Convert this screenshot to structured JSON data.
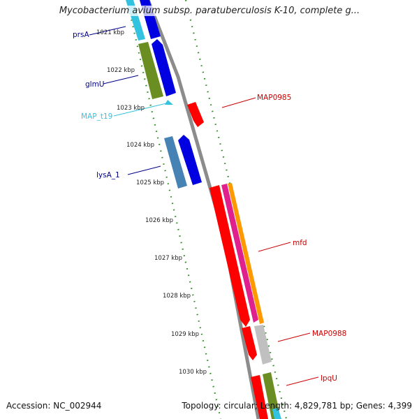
{
  "title": "Mycobacterium avium subsp. paratuberculosis K-10, complete g...",
  "footer": {
    "accession": "Accession: NC_002944",
    "stats": "Topology: circular; Length: 4,829,781 bp; Genes: 4,399"
  },
  "ticks": [
    "1021 kbp",
    "1022 kbp",
    "1023 kbp",
    "1024 kbp",
    "1025 kbp",
    "1026 kbp",
    "1027 kbp",
    "1028 kbp",
    "1029 kbp",
    "1030 kbp"
  ],
  "genes": {
    "left": [
      {
        "label": "prsA",
        "color": "#00008b"
      },
      {
        "label": "glmU",
        "color": "#00008b"
      },
      {
        "label": "MAP_t19",
        "color": "#33c3e0"
      },
      {
        "label": "lysA_1",
        "color": "#00008b"
      }
    ],
    "right": [
      {
        "label": "MAP0985",
        "color": "#cc0000"
      },
      {
        "label": "mfd",
        "color": "#cc0000"
      },
      {
        "label": "MAP0988",
        "color": "#cc0000"
      },
      {
        "label": "lpqU",
        "color": "#cc0000"
      }
    ]
  },
  "colors": {
    "backbone": "#8c8c8c",
    "tick_dots": "#2e8b22",
    "cds_blue": "#0000e0",
    "cds_red": "#ff0000",
    "cds_olive": "#6b8e23",
    "cds_steel": "#4682b4",
    "cds_magenta": "#e0208c",
    "cds_orange": "#ff9900",
    "cds_gray": "#c0c0c0",
    "cds_cyan": "#33c3e0"
  }
}
